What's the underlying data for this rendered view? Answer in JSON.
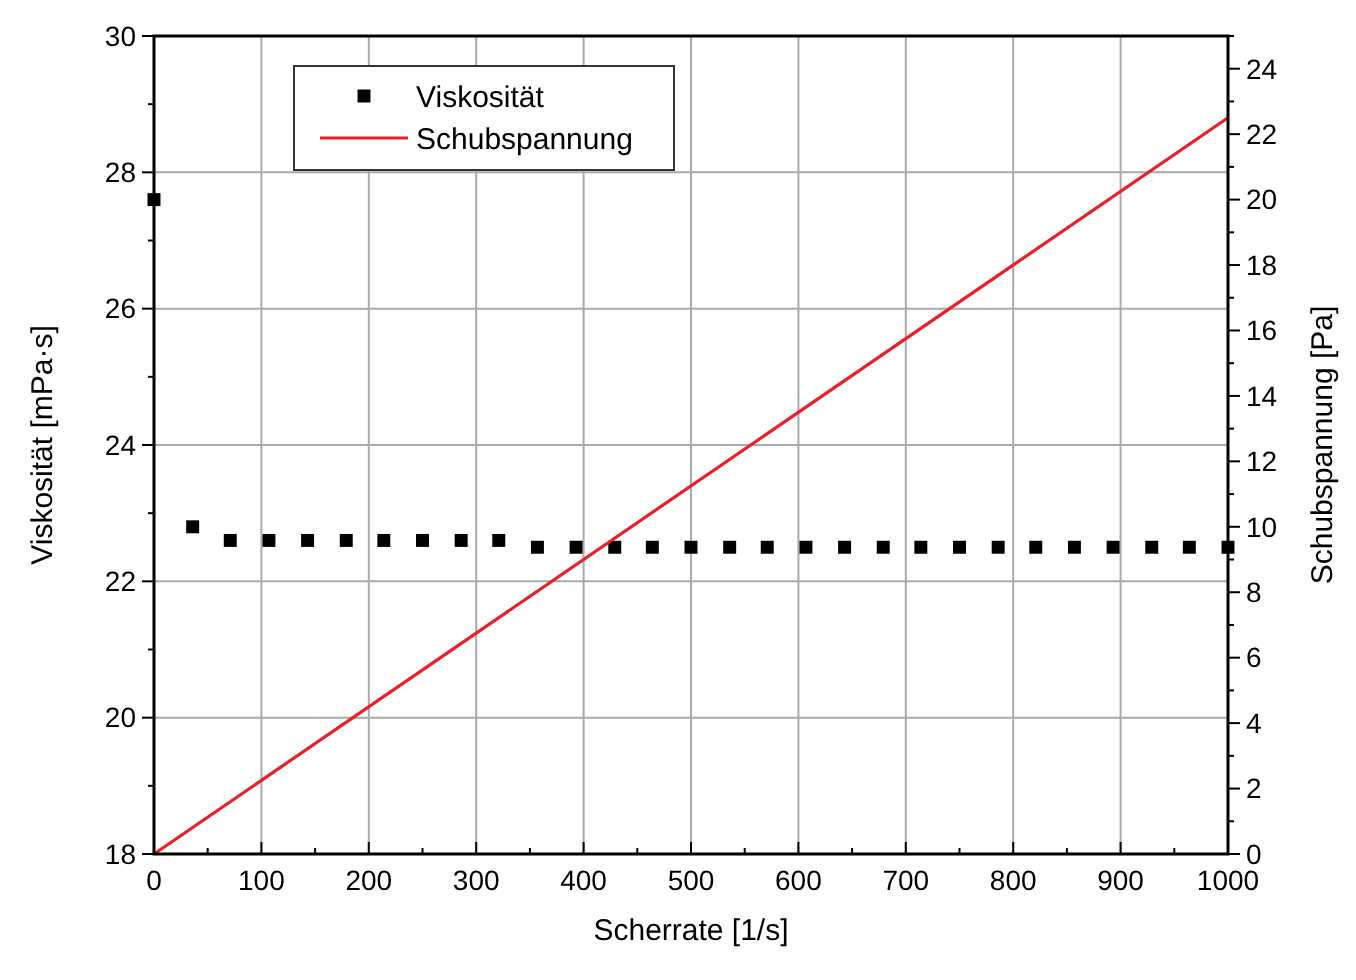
{
  "chart_data": {
    "type": "scatter",
    "xlabel": "Scherrate [1/s]",
    "ylabel": "Viskosität [mPa·s]",
    "y2label": "Schubspannung [Pa]",
    "xlim": [
      0,
      1000
    ],
    "xticks": [
      0,
      {
        "value": 50,
        "label": null
      },
      100,
      {
        "value": 150,
        "label": null
      },
      200,
      {
        "value": 250,
        "label": null
      },
      300,
      {
        "value": 350,
        "label": null
      },
      400,
      {
        "value": 450,
        "label": null
      },
      500,
      {
        "value": 550,
        "label": null
      },
      600,
      {
        "value": 650,
        "label": null
      },
      700,
      {
        "value": 750,
        "label": null
      },
      800,
      {
        "value": 850,
        "label": null
      },
      900,
      {
        "value": 950,
        "label": null
      },
      1000
    ],
    "ylim": [
      18,
      30
    ],
    "yticks": [
      18,
      {
        "value": 19,
        "label": null
      },
      20,
      {
        "value": 21,
        "label": null
      },
      22,
      {
        "value": 23,
        "label": null
      },
      24,
      {
        "value": 25,
        "label": null
      },
      26,
      {
        "value": 27,
        "label": null
      },
      28,
      {
        "value": 29,
        "label": null
      },
      30
    ],
    "y2lim": [
      0,
      25
    ],
    "y2ticks": [
      0,
      {
        "value": 1,
        "label": null
      },
      2,
      {
        "value": 3,
        "label": null
      },
      4,
      {
        "value": 5,
        "label": null
      },
      6,
      {
        "value": 7,
        "label": null
      },
      8,
      {
        "value": 9,
        "label": null
      },
      10,
      {
        "value": 11,
        "label": null
      },
      12,
      {
        "value": 13,
        "label": null
      },
      14,
      {
        "value": 15,
        "label": null
      },
      16,
      {
        "value": 17,
        "label": null
      },
      18,
      {
        "value": 19,
        "label": null
      },
      20,
      {
        "value": 21,
        "label": null
      },
      22,
      {
        "value": 23,
        "label": null
      },
      24,
      {
        "value": 25,
        "label": null
      }
    ],
    "grid": true,
    "legend": "top left",
    "marker": "square",
    "series": [
      {
        "name": "Viskosität",
        "color": "#000000",
        "x": [
          0,
          36,
          71,
          107,
          143,
          179,
          214,
          250,
          286,
          321,
          357,
          393,
          429,
          464,
          500,
          536,
          571,
          607,
          643,
          679,
          714,
          750,
          786,
          821,
          857,
          893,
          929,
          964,
          1000
        ],
        "values": [
          27.6,
          22.8,
          22.6,
          22.6,
          22.6,
          22.6,
          22.6,
          22.6,
          22.6,
          22.6,
          22.5,
          22.5,
          22.5,
          22.5,
          22.5,
          22.5,
          22.5,
          22.5,
          22.5,
          22.5,
          22.5,
          22.5,
          22.5,
          22.5,
          22.5,
          22.5,
          22.5,
          22.5,
          22.5
        ]
      },
      {
        "name": "Schubspannung",
        "type": "line",
        "color": "#e8202a",
        "axis": "y2",
        "marker": "none",
        "line_style": "solid",
        "x": [
          0,
          1000
        ],
        "values": [
          0,
          22.5
        ]
      }
    ]
  }
}
